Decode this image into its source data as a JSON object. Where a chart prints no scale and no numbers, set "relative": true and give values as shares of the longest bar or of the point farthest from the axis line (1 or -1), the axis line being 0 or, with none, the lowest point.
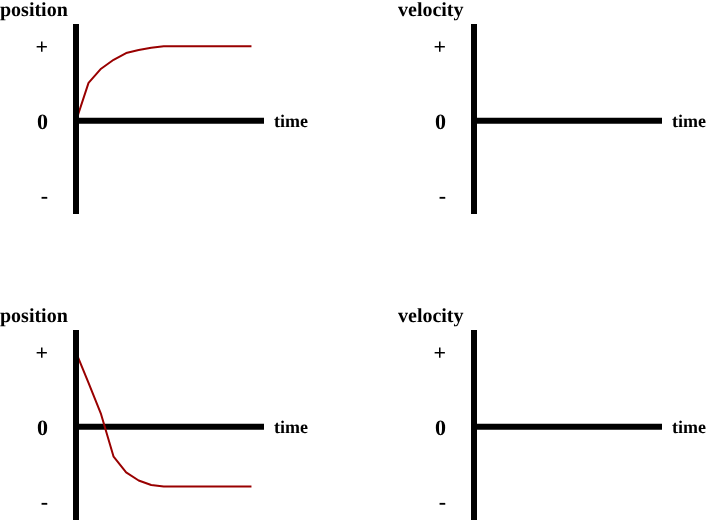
{
  "chart_data": [
    {
      "type": "line",
      "ylabel": "position",
      "xlabel": "time",
      "categories": [
        null,
        null,
        null,
        null,
        null,
        null,
        null,
        null,
        null,
        null,
        null,
        null,
        null,
        null,
        null
      ],
      "relative": true,
      "annotations": [
        "+",
        "0",
        "-"
      ],
      "tick_labels": "y",
      "series": [
        {
          "type": "line",
          "color": "#990000",
          "values": [
            0,
            0.51,
            0.7,
            0.82,
            0.91,
            0.95,
            0.98,
            1,
            1,
            1,
            1,
            1,
            1,
            1,
            1
          ]
        }
      ]
    },
    {
      "type": "other",
      "ylabel": "velocity",
      "xlabel": "time",
      "annotations": [
        "+",
        "0",
        "-"
      ]
    },
    {
      "type": "line",
      "ylabel": "position",
      "xlabel": "time",
      "categories": [
        null,
        null,
        null,
        null,
        null,
        null,
        null,
        null,
        null,
        null,
        null,
        null,
        null,
        null,
        null
      ],
      "relative": true,
      "annotations": [
        "+",
        "0",
        "-"
      ],
      "tick_labels": "y",
      "series": [
        {
          "type": "line",
          "color": "#990000",
          "values": [
            1,
            0.59,
            0.17,
            -0.4,
            -0.61,
            -0.72,
            -0.78,
            -0.8,
            -0.8,
            -0.8,
            -0.8,
            -0.8,
            -0.8,
            -0.8,
            -0.8
          ]
        }
      ]
    },
    {
      "type": "other",
      "ylabel": "velocity",
      "xlabel": "time",
      "annotations": [
        "+",
        "0",
        "-"
      ]
    }
  ]
}
